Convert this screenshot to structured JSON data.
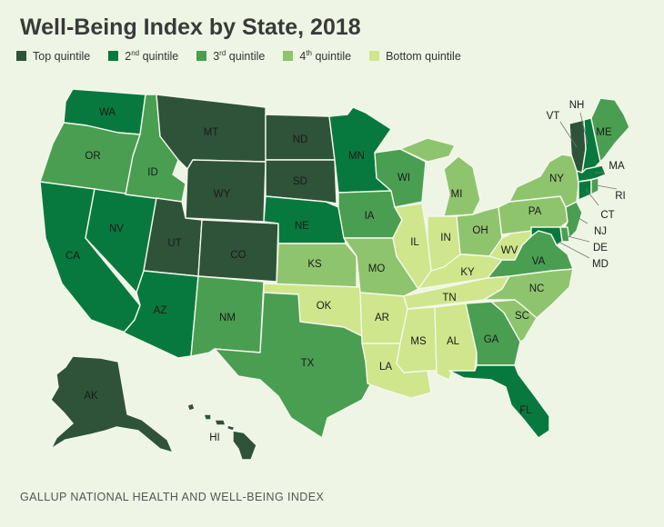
{
  "title": "Well-Being Index by State, 2018",
  "legend": [
    {
      "label": "Top quintile",
      "color": "#2e5339"
    },
    {
      "label": "2nd quintile",
      "color": "#08793e"
    },
    {
      "label": "3rd quintile",
      "color": "#4a9e51"
    },
    {
      "label": "4th quintile",
      "color": "#8fc46e"
    },
    {
      "label": "Bottom quintile",
      "color": "#cfe68c"
    }
  ],
  "legend_display": [
    {
      "pre": "Top quintile",
      "sup": "",
      "post": ""
    },
    {
      "pre": "2",
      "sup": "nd",
      "post": " quintile"
    },
    {
      "pre": "3",
      "sup": "rd",
      "post": " quintile"
    },
    {
      "pre": "4",
      "sup": "th",
      "post": " quintile"
    },
    {
      "pre": "Bottom quintile",
      "sup": "",
      "post": ""
    }
  ],
  "states": [
    {
      "abbr": "WA",
      "quintile": 2
    },
    {
      "abbr": "OR",
      "quintile": 3
    },
    {
      "abbr": "CA",
      "quintile": 2
    },
    {
      "abbr": "NV",
      "quintile": 2
    },
    {
      "abbr": "ID",
      "quintile": 3
    },
    {
      "abbr": "MT",
      "quintile": 1
    },
    {
      "abbr": "WY",
      "quintile": 1
    },
    {
      "abbr": "UT",
      "quintile": 1
    },
    {
      "abbr": "CO",
      "quintile": 1
    },
    {
      "abbr": "AZ",
      "quintile": 2
    },
    {
      "abbr": "NM",
      "quintile": 3
    },
    {
      "abbr": "ND",
      "quintile": 1
    },
    {
      "abbr": "SD",
      "quintile": 1
    },
    {
      "abbr": "NE",
      "quintile": 2
    },
    {
      "abbr": "KS",
      "quintile": 4
    },
    {
      "abbr": "OK",
      "quintile": 5
    },
    {
      "abbr": "TX",
      "quintile": 3
    },
    {
      "abbr": "MN",
      "quintile": 2
    },
    {
      "abbr": "IA",
      "quintile": 3
    },
    {
      "abbr": "MO",
      "quintile": 4
    },
    {
      "abbr": "AR",
      "quintile": 5
    },
    {
      "abbr": "LA",
      "quintile": 5
    },
    {
      "abbr": "WI",
      "quintile": 3
    },
    {
      "abbr": "IL",
      "quintile": 5
    },
    {
      "abbr": "MI",
      "quintile": 4
    },
    {
      "abbr": "IN",
      "quintile": 5
    },
    {
      "abbr": "OH",
      "quintile": 4
    },
    {
      "abbr": "KY",
      "quintile": 5
    },
    {
      "abbr": "TN",
      "quintile": 5
    },
    {
      "abbr": "MS",
      "quintile": 5
    },
    {
      "abbr": "AL",
      "quintile": 5
    },
    {
      "abbr": "GA",
      "quintile": 3
    },
    {
      "abbr": "FL",
      "quintile": 2
    },
    {
      "abbr": "SC",
      "quintile": 4
    },
    {
      "abbr": "NC",
      "quintile": 4
    },
    {
      "abbr": "VA",
      "quintile": 3
    },
    {
      "abbr": "WV",
      "quintile": 5
    },
    {
      "abbr": "PA",
      "quintile": 4
    },
    {
      "abbr": "NY",
      "quintile": 4
    },
    {
      "abbr": "ME",
      "quintile": 3
    },
    {
      "abbr": "VT",
      "quintile": 1
    },
    {
      "abbr": "NH",
      "quintile": 2
    },
    {
      "abbr": "MA",
      "quintile": 2
    },
    {
      "abbr": "RI",
      "quintile": 3
    },
    {
      "abbr": "CT",
      "quintile": 2
    },
    {
      "abbr": "NJ",
      "quintile": 3
    },
    {
      "abbr": "DE",
      "quintile": 3
    },
    {
      "abbr": "MD",
      "quintile": 2
    },
    {
      "abbr": "AK",
      "quintile": 1
    },
    {
      "abbr": "HI",
      "quintile": 1
    }
  ],
  "source": "GALLUP NATIONAL HEALTH AND WELL-BEING INDEX"
}
